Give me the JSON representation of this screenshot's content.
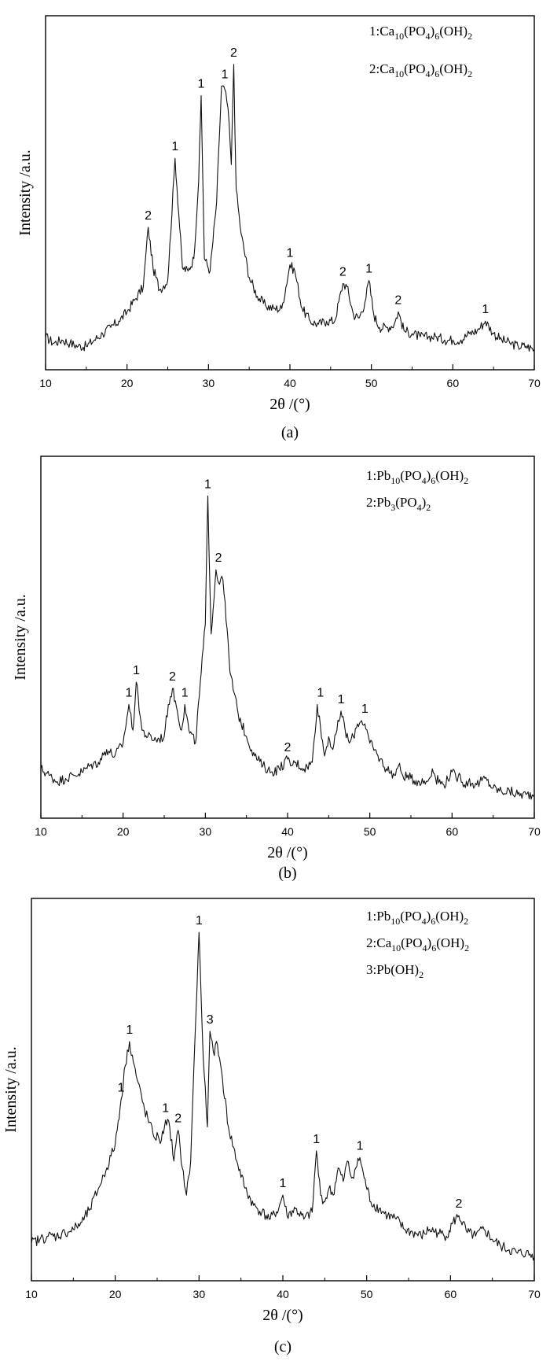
{
  "chart_data": [
    {
      "type": "line",
      "panel_label": "(a)",
      "xlabel": "2θ /(°)",
      "ylabel": "Intensity /a.u.",
      "xlim": [
        10,
        70
      ],
      "ylim": [
        0,
        100
      ],
      "x_ticks": [
        "10",
        "20",
        "30",
        "40",
        "50",
        "60",
        "70"
      ],
      "legend": [
        {
          "prefix": "1:",
          "parts": [
            [
              "Ca",
              ""
            ],
            [
              "10",
              "sub"
            ],
            [
              "(PO",
              ""
            ],
            [
              "4",
              "sub"
            ],
            [
              ")",
              ""
            ],
            [
              "6",
              "sub"
            ],
            [
              "(OH)",
              ""
            ],
            [
              "2",
              "sub"
            ]
          ]
        },
        {
          "prefix": "2:",
          "parts": [
            [
              "Ca",
              ""
            ],
            [
              "10",
              "sub"
            ],
            [
              "(PO",
              ""
            ],
            [
              "4",
              "sub"
            ],
            [
              ")",
              ""
            ],
            [
              "6",
              "sub"
            ],
            [
              "(OH)",
              ""
            ],
            [
              "2",
              "sub"
            ]
          ]
        }
      ],
      "series": [
        {
          "x": [
            10,
            11,
            12,
            13,
            14,
            15,
            16,
            17,
            18,
            19,
            20,
            21,
            22,
            22.6,
            23.2,
            24,
            25,
            25.9,
            26.8,
            27.5,
            28.2,
            28.8,
            29.1,
            29.5,
            30.2,
            31,
            31.6,
            32,
            32.4,
            32.8,
            33.1,
            33.4,
            34,
            35,
            36,
            37,
            38,
            39,
            40,
            40.6,
            41.5,
            42.5,
            43.5,
            44.5,
            45.5,
            46.5,
            47,
            47.8,
            48.5,
            49.2,
            49.7,
            50.3,
            51,
            52,
            52.8,
            53.3,
            54,
            55,
            56,
            57,
            58,
            59,
            60,
            61,
            62,
            63,
            64,
            65,
            66,
            67,
            68,
            69,
            70
          ],
          "y": [
            5,
            3,
            4,
            3,
            2,
            2,
            4,
            6,
            8,
            10,
            13,
            17,
            21,
            40,
            27,
            20,
            23,
            62,
            27,
            26,
            30,
            55,
            82,
            30,
            26,
            48,
            85,
            84,
            78,
            60,
            92,
            52,
            38,
            24,
            18,
            15,
            14,
            14,
            28,
            26,
            14,
            10,
            9,
            10,
            10,
            22,
            21,
            12,
            11,
            16,
            23,
            12,
            8,
            8,
            9,
            13,
            7,
            6,
            5,
            5,
            5,
            4,
            4,
            4,
            6,
            7,
            10,
            6,
            4,
            3,
            2,
            2,
            1
          ]
        }
      ],
      "annotations": [
        {
          "text": "2",
          "x": 22.6,
          "y": 40
        },
        {
          "text": "1",
          "x": 25.9,
          "y": 62
        },
        {
          "text": "1",
          "x": 29.1,
          "y": 82
        },
        {
          "text": "1",
          "x": 32.0,
          "y": 85
        },
        {
          "text": "2",
          "x": 33.1,
          "y": 92
        },
        {
          "text": "1",
          "x": 40.0,
          "y": 28
        },
        {
          "text": "2",
          "x": 46.5,
          "y": 22
        },
        {
          "text": "1",
          "x": 49.7,
          "y": 23
        },
        {
          "text": "2",
          "x": 53.3,
          "y": 13
        },
        {
          "text": "1",
          "x": 64.0,
          "y": 10
        }
      ]
    },
    {
      "type": "line",
      "panel_label": "(b)",
      "xlabel": "2θ /(°)",
      "ylabel": "Intensity /a.u.",
      "xlim": [
        10,
        70
      ],
      "ylim": [
        0,
        100
      ],
      "x_ticks": [
        "10",
        "20",
        "30",
        "40",
        "50",
        "60",
        "70"
      ],
      "legend": [
        {
          "prefix": "1:",
          "parts": [
            [
              "Pb",
              ""
            ],
            [
              "10",
              "sub"
            ],
            [
              "(PO",
              ""
            ],
            [
              "4",
              "sub"
            ],
            [
              ")",
              ""
            ],
            [
              "6",
              "sub"
            ],
            [
              "(OH)",
              ""
            ],
            [
              "2",
              "sub"
            ]
          ]
        },
        {
          "prefix": "2:",
          "parts": [
            [
              "Pb",
              ""
            ],
            [
              "3",
              "sub"
            ],
            [
              "(PO",
              ""
            ],
            [
              "4",
              "sub"
            ],
            [
              ")",
              ""
            ],
            [
              "2",
              "sub"
            ]
          ]
        }
      ],
      "series": [
        {
          "x": [
            10,
            11,
            12,
            13,
            14,
            15,
            16,
            17,
            18,
            19,
            20,
            20.7,
            21.2,
            21.6,
            22.3,
            23,
            24,
            25,
            25.5,
            26,
            26.6,
            27.1,
            27.5,
            28,
            28.8,
            29.5,
            30,
            30.3,
            30.7,
            31.3,
            31.6,
            32,
            32.4,
            33,
            34,
            35,
            36,
            37,
            38,
            39,
            40,
            40.5,
            41,
            42,
            43,
            43.6,
            44,
            44.5,
            45,
            45.5,
            46,
            46.5,
            47,
            47.5,
            48,
            48.5,
            49,
            49.4,
            50,
            51,
            52,
            53,
            53.5,
            54,
            55,
            56,
            57,
            57.6,
            58,
            59,
            60,
            60.5,
            61,
            61.5,
            62,
            63,
            64,
            65,
            66,
            67,
            68,
            69,
            70
          ],
          "y": [
            10,
            8,
            6,
            7,
            8,
            9,
            11,
            12,
            16,
            14,
            18,
            30,
            22,
            37,
            22,
            20,
            19,
            20,
            30,
            35,
            28,
            22,
            30,
            22,
            18,
            40,
            55,
            95,
            52,
            72,
            68,
            70,
            62,
            40,
            27,
            20,
            14,
            11,
            9,
            10,
            13,
            11,
            12,
            10,
            12,
            30,
            23,
            14,
            20,
            16,
            22,
            28,
            22,
            18,
            20,
            24,
            25,
            24,
            18,
            14,
            10,
            8,
            11,
            8,
            7,
            6,
            6,
            10,
            7,
            5,
            9,
            7,
            8,
            5,
            6,
            5,
            7,
            4,
            3,
            3,
            2,
            2,
            2
          ]
        }
      ],
      "annotations": [
        {
          "text": "1",
          "x": 20.7,
          "y": 30
        },
        {
          "text": "1",
          "x": 21.6,
          "y": 37
        },
        {
          "text": "2",
          "x": 26.0,
          "y": 35
        },
        {
          "text": "1",
          "x": 27.5,
          "y": 30
        },
        {
          "text": "1",
          "x": 30.3,
          "y": 95
        },
        {
          "text": "2",
          "x": 31.6,
          "y": 72
        },
        {
          "text": "2",
          "x": 40.0,
          "y": 13
        },
        {
          "text": "1",
          "x": 44.0,
          "y": 30
        },
        {
          "text": "1",
          "x": 46.5,
          "y": 28
        },
        {
          "text": "1",
          "x": 49.4,
          "y": 25
        }
      ]
    },
    {
      "type": "line",
      "panel_label": "(c)",
      "xlabel": "2θ /(°)",
      "ylabel": "Intensity /a.u.",
      "xlim": [
        10,
        70
      ],
      "ylim": [
        0,
        100
      ],
      "x_ticks": [
        "10",
        "20",
        "30",
        "40",
        "50",
        "60",
        "70"
      ],
      "legend": [
        {
          "prefix": "1:",
          "parts": [
            [
              "Pb",
              ""
            ],
            [
              "10",
              "sub"
            ],
            [
              "(PO",
              ""
            ],
            [
              "4",
              "sub"
            ],
            [
              ")",
              ""
            ],
            [
              "6",
              "sub"
            ],
            [
              "(OH)",
              ""
            ],
            [
              "2",
              "sub"
            ]
          ]
        },
        {
          "prefix": "2:",
          "parts": [
            [
              "Ca",
              ""
            ],
            [
              "10",
              "sub"
            ],
            [
              "(PO",
              ""
            ],
            [
              "4",
              "sub"
            ],
            [
              ")",
              ""
            ],
            [
              "6",
              "sub"
            ],
            [
              "(OH)",
              ""
            ],
            [
              "2",
              "sub"
            ]
          ]
        },
        {
          "prefix": "3:",
          "parts": [
            [
              "Pb(OH)",
              ""
            ],
            [
              "2",
              "sub"
            ]
          ]
        }
      ],
      "series": [
        {
          "x": [
            10,
            11,
            12,
            13,
            14,
            15,
            16,
            17,
            18,
            19,
            20,
            20.7,
            21.2,
            21.7,
            22.5,
            23.5,
            24.5,
            25.5,
            26,
            26.5,
            27,
            27.5,
            28,
            28.5,
            29,
            29.5,
            30,
            30.5,
            31,
            31.3,
            31.7,
            32.2,
            32.8,
            33.5,
            34.5,
            35.5,
            36.5,
            37.5,
            38.5,
            39.5,
            40,
            40.5,
            41.5,
            42.5,
            43.5,
            44,
            44.5,
            45,
            45.5,
            46,
            46.6,
            47.2,
            47.7,
            48.2,
            48.7,
            49.2,
            49.7,
            50.5,
            51.5,
            52.5,
            53.5,
            54.5,
            55.5,
            56.5,
            57.5,
            58.5,
            59.5,
            60.3,
            61,
            62,
            63,
            64,
            65,
            66,
            67,
            68,
            69,
            70
          ],
          "y": [
            6,
            7,
            8,
            8,
            9,
            10,
            12,
            16,
            22,
            28,
            35,
            48,
            58,
            65,
            55,
            45,
            38,
            36,
            42,
            40,
            30,
            39,
            28,
            20,
            30,
            65,
            97,
            60,
            40,
            68,
            62,
            64,
            54,
            40,
            30,
            22,
            17,
            15,
            13,
            16,
            20,
            14,
            16,
            13,
            15,
            33,
            20,
            18,
            22,
            20,
            28,
            24,
            30,
            25,
            28,
            31,
            25,
            18,
            16,
            14,
            13,
            10,
            9,
            8,
            10,
            9,
            8,
            12,
            14,
            9,
            8,
            10,
            7,
            5,
            4,
            3,
            3,
            2
          ]
        }
      ],
      "annotations": [
        {
          "text": "1",
          "x": 20.7,
          "y": 48
        },
        {
          "text": "1",
          "x": 21.7,
          "y": 65
        },
        {
          "text": "1",
          "x": 26.0,
          "y": 42
        },
        {
          "text": "2",
          "x": 27.5,
          "y": 39
        },
        {
          "text": "1",
          "x": 30.0,
          "y": 97
        },
        {
          "text": "3",
          "x": 31.3,
          "y": 68
        },
        {
          "text": "1",
          "x": 40.0,
          "y": 20
        },
        {
          "text": "1",
          "x": 44.0,
          "y": 33
        },
        {
          "text": "1",
          "x": 49.2,
          "y": 31
        },
        {
          "text": "2",
          "x": 61.0,
          "y": 14
        }
      ]
    }
  ]
}
